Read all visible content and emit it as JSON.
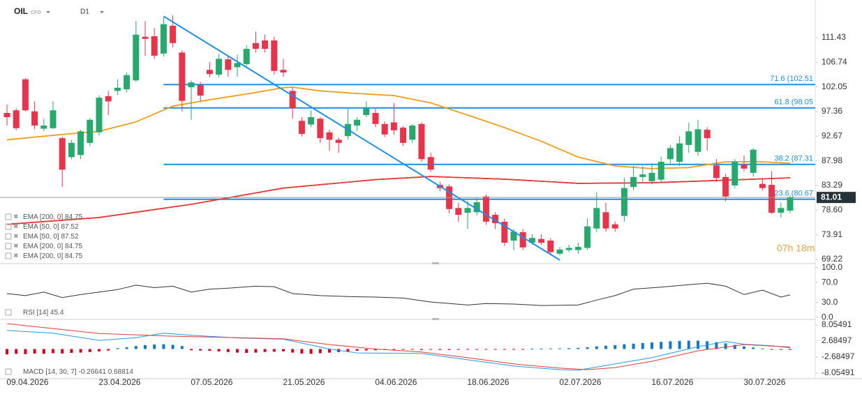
{
  "header": {
    "symbol": "OIL",
    "kind": "CFD",
    "timeframe": "D1"
  },
  "chart_data": [
    {
      "type": "candlestick",
      "categories": [
        null,
        null,
        "09.04.2026",
        null,
        null,
        null,
        null,
        null,
        null,
        null,
        null,
        null,
        "23.04.2026",
        null,
        null,
        null,
        null,
        null,
        null,
        null,
        null,
        null,
        "07.05.2026",
        null,
        null,
        null,
        null,
        null,
        null,
        null,
        null,
        null,
        "21.05.2026",
        null,
        null,
        null,
        null,
        null,
        null,
        null,
        null,
        null,
        "04.06.2026",
        null,
        null,
        null,
        null,
        null,
        null,
        null,
        null,
        null,
        "18.06.2026",
        null,
        null,
        null,
        null,
        null,
        null,
        null,
        null,
        null,
        "02.07.2026",
        null,
        null,
        null,
        null,
        null,
        null,
        null,
        null,
        null,
        "16.07.2026",
        null,
        null,
        null,
        null,
        null,
        null,
        null,
        null,
        null,
        "30.07.2026",
        null,
        null,
        null
      ],
      "open": [
        97.1,
        97.6,
        103.5,
        97.4,
        94.1,
        94.2,
        92.3,
        88.7,
        89.1,
        91.4,
        93.4,
        100.3,
        101.3,
        101.6,
        103.3,
        111.6,
        111.7,
        108.4,
        113.7,
        108.6,
        102.0,
        102.4,
        105.3,
        104.4,
        107.3,
        105.8,
        106.4,
        110.4,
        110.9,
        110.9,
        105.3,
        101.3,
        95.6,
        94.9,
        96.0,
        93.4,
        92.0,
        92.7,
        94.7,
        96.7,
        97.1,
        95.0,
        95.3,
        94.3,
        92.0,
        95.0,
        88.7,
        83.4,
        83.1,
        79.0,
        78.1,
        78.2,
        81.2,
        77.7,
        76.4,
        72.8,
        74.4,
        72.4,
        73.1,
        72.8,
        70.3,
        71.0,
        71.0,
        71.4,
        75.1,
        78.2,
        75.9,
        77.5,
        83.0,
        84.9,
        84.1,
        84.4,
        88.3,
        87.8,
        91.0,
        89.7,
        93.9,
        87.1,
        84.9,
        83.3,
        87.3,
        85.7,
        83.6,
        83.4,
        78.1,
        78.5
      ],
      "high": [
        98.7,
        98.0,
        103.7,
        99.3,
        96.0,
        99.3,
        92.6,
        92.0,
        93.9,
        96.1,
        100.5,
        101.3,
        103.5,
        104.8,
        114.6,
        114.6,
        113.3,
        115.3,
        115.7,
        109.0,
        103.3,
        103.0,
        106.8,
        108.3,
        108.0,
        108.2,
        110.0,
        112.6,
        112.0,
        111.6,
        107.4,
        101.9,
        96.3,
        97.6,
        96.3,
        93.9,
        92.4,
        97.9,
        96.3,
        99.3,
        97.9,
        95.5,
        99.0,
        94.6,
        95.0,
        95.3,
        89.5,
        84.0,
        83.5,
        80.0,
        80.3,
        81.0,
        81.6,
        78.2,
        77.0,
        75.0,
        75.0,
        74.0,
        74.0,
        73.3,
        71.6,
        72.0,
        72.4,
        77.0,
        82.0,
        80.0,
        76.4,
        84.8,
        87.0,
        87.0,
        87.5,
        88.8,
        91.0,
        92.7,
        95.3,
        95.8,
        94.4,
        88.3,
        85.5,
        88.3,
        89.0,
        90.4,
        84.5,
        86.0,
        80.0,
        81.4
      ],
      "low": [
        94.7,
        93.8,
        97.4,
        94.0,
        93.6,
        94.0,
        83.0,
        88.3,
        88.3,
        90.8,
        92.8,
        96.7,
        100.5,
        101.0,
        103.0,
        108.0,
        107.4,
        107.8,
        109.6,
        97.4,
        95.8,
        99.3,
        103.9,
        103.9,
        104.0,
        104.0,
        105.8,
        108.6,
        108.6,
        104.4,
        104.0,
        96.0,
        92.6,
        94.4,
        91.4,
        89.9,
        89.5,
        92.0,
        93.7,
        96.3,
        94.4,
        92.5,
        93.0,
        90.8,
        91.4,
        87.8,
        85.9,
        82.2,
        78.0,
        76.4,
        75.0,
        77.6,
        75.8,
        75.0,
        71.8,
        71.0,
        71.0,
        72.0,
        72.0,
        70.0,
        70.0,
        70.6,
        70.3,
        71.0,
        74.4,
        74.5,
        74.5,
        76.4,
        82.4,
        84.0,
        83.5,
        84.0,
        87.5,
        87.0,
        89.5,
        89.0,
        89.9,
        84.0,
        80.3,
        82.8,
        86.0,
        85.0,
        82.4,
        77.9,
        77.2,
        78.1
      ],
      "close": [
        96.3,
        94.2,
        97.6,
        94.7,
        94.7,
        97.6,
        86.3,
        91.4,
        93.6,
        95.8,
        100.0,
        99.3,
        101.9,
        104.3,
        112.0,
        111.2,
        108.0,
        114.0,
        110.4,
        99.4,
        102.9,
        100.4,
        104.5,
        107.4,
        105.3,
        106.6,
        109.3,
        109.3,
        109.3,
        105.1,
        104.8,
        98.0,
        93.1,
        96.3,
        92.3,
        92.0,
        91.4,
        95.0,
        95.8,
        98.0,
        95.0,
        93.0,
        93.8,
        91.4,
        94.7,
        88.3,
        86.3,
        82.8,
        78.8,
        77.7,
        79.0,
        80.1,
        76.4,
        76.1,
        72.4,
        74.5,
        71.5,
        73.3,
        72.4,
        70.6,
        71.1,
        71.4,
        71.6,
        75.5,
        79.0,
        75.1,
        75.1,
        82.8,
        84.9,
        85.4,
        85.7,
        87.8,
        90.4,
        91.3,
        93.6,
        94.0,
        92.3,
        84.7,
        81.2,
        87.8,
        86.5,
        90.1,
        82.8,
        78.1,
        79.0,
        81.01
      ],
      "up_color": "#26a96c",
      "down_color": "#e8334a",
      "ylim": [
        68.42,
        118.6
      ],
      "yticks": [
        111.43,
        106.74,
        102.05,
        97.36,
        92.67,
        87.98,
        83.29,
        {
          "value": 78.6,
          "label": "78.60"
        },
        73.91,
        69.22
      ],
      "series": [
        {
          "name": "EMA [200, 0]",
          "color": "#e53935",
          "x": [
            0,
            10,
            20,
            30,
            40,
            46,
            54,
            62,
            70,
            78,
            85
          ],
          "values": [
            75.9,
            77.2,
            79.7,
            82.8,
            84.4,
            85.0,
            84.5,
            83.7,
            83.8,
            84.3,
            84.75
          ]
        },
        {
          "name": "EMA [50, 0]",
          "color": "#f39c12",
          "x": [
            0,
            6,
            10,
            14,
            18,
            22,
            26,
            30,
            31,
            34,
            38,
            42,
            46,
            50,
            54,
            58,
            62,
            66,
            70,
            74,
            78,
            82,
            85
          ],
          "values": [
            92.0,
            93.0,
            93.6,
            95.4,
            98.4,
            99.6,
            100.7,
            101.9,
            102.0,
            101.3,
            100.8,
            100.4,
            99.0,
            96.7,
            94.3,
            91.7,
            88.7,
            87.0,
            86.5,
            86.7,
            87.8,
            87.8,
            87.52
          ]
        },
        {
          "name": "EMA [50, 0]",
          "color": "#f39c12",
          "x": [
            0,
            6,
            10,
            14,
            18,
            22,
            26,
            30,
            31,
            34,
            38,
            42,
            46,
            50,
            54,
            58,
            62,
            66,
            70,
            74,
            78,
            82,
            85
          ],
          "values": [
            92.0,
            93.0,
            93.6,
            95.4,
            98.4,
            99.6,
            100.7,
            101.9,
            102.0,
            101.3,
            100.8,
            100.4,
            99.0,
            96.7,
            94.3,
            91.7,
            88.7,
            87.0,
            86.5,
            86.7,
            87.8,
            87.8,
            87.52
          ]
        },
        {
          "name": "EMA [200, 0]",
          "color": "#e53935",
          "x": [
            0,
            10,
            20,
            30,
            40,
            46,
            54,
            62,
            70,
            78,
            85
          ],
          "values": [
            75.9,
            77.2,
            79.7,
            82.8,
            84.4,
            85.0,
            84.5,
            83.7,
            83.8,
            84.3,
            84.75
          ]
        },
        {
          "name": "EMA [200, 0]",
          "color": "#e53935",
          "x": [
            0,
            10,
            20,
            30,
            40,
            46,
            54,
            62,
            70,
            78,
            85
          ],
          "values": [
            75.9,
            77.2,
            79.7,
            82.8,
            84.4,
            85.0,
            84.5,
            83.7,
            83.8,
            84.3,
            84.75
          ]
        }
      ],
      "trendline": {
        "color": "#1e8fe8",
        "x": [
          17,
          60
        ],
        "values": [
          115.5,
          69.1
        ]
      },
      "levels": [
        {
          "value": 102.51,
          "label": "71.6 (102.51"
        },
        {
          "value": 98.05,
          "label": "61.8 (98.05"
        },
        {
          "value": 87.31,
          "label": "38.2 (87.31"
        },
        {
          "value": 80.67,
          "label": "23.6 (80.67"
        }
      ],
      "level_color": "#1a8fe3",
      "last_price": 81.01,
      "timer": "07h 18m"
    },
    {
      "type": "line",
      "name": "RSI [14]",
      "color": "#333333",
      "x": [
        0,
        2,
        4,
        6,
        8,
        10,
        12,
        14,
        16,
        18,
        20,
        22,
        24,
        27,
        29,
        31,
        34,
        37,
        40,
        43,
        46,
        50,
        52,
        55,
        58,
        62,
        64,
        66,
        68,
        71,
        74,
        76,
        78,
        80,
        82,
        84,
        85
      ],
      "values": [
        48,
        44,
        51,
        40,
        46,
        51,
        56,
        65,
        60,
        63,
        51,
        57,
        59,
        63,
        62,
        48,
        44,
        42,
        41,
        39,
        31,
        25,
        28,
        27,
        24,
        25,
        35,
        44,
        57,
        61,
        66,
        69,
        63,
        46,
        55,
        41,
        45.4
      ],
      "ylim": [
        -4,
        108.5
      ],
      "yticks": [
        {
          "value": 100,
          "label": "100.0"
        },
        {
          "value": 70,
          "label": "70.0"
        },
        {
          "value": 30,
          "label": "30.0"
        },
        {
          "value": 0,
          "label": "0.0"
        }
      ]
    },
    {
      "type": "combo",
      "name": "MACD [14, 30, 7]",
      "histogram": {
        "up_color": "#1479c4",
        "down_color": "#d0021b",
        "values": [
          -1.8,
          -1.6,
          -1.7,
          -1.5,
          -1.6,
          -1.4,
          -1.5,
          -1.3,
          -1.2,
          -1.0,
          -0.8,
          -0.5,
          0.3,
          0.6,
          1.0,
          1.3,
          1.5,
          1.6,
          1.4,
          1.0,
          -0.4,
          -0.5,
          -0.6,
          -0.8,
          -1.0,
          -1.2,
          -1.3,
          -1.2,
          -1.0,
          -0.9,
          -0.8,
          -1.2,
          -1.5,
          -1.6,
          -1.4,
          -1.2,
          -1.0,
          -0.8,
          -0.6,
          -0.5,
          -0.4,
          -0.3,
          -0.2,
          -0.2,
          -0.2,
          -0.3,
          -0.2,
          -0.3,
          -0.3,
          -0.2,
          -0.2,
          -0.1,
          -0.2,
          -0.2,
          -0.1,
          -0.1,
          -0.1,
          0.1,
          0.1,
          0.2,
          0.2,
          0.3,
          0.4,
          0.6,
          0.9,
          1.1,
          1.3,
          1.6,
          1.8,
          2.0,
          2.2,
          2.4,
          2.6,
          2.7,
          2.8,
          2.8,
          2.6,
          2.3,
          1.9,
          1.4,
          0.9,
          0.5,
          0.2,
          -0.1,
          -0.2,
          -0.26641
        ]
      },
      "series": [
        {
          "color": "#2196f3",
          "x": [
            0,
            5,
            10,
            14,
            17,
            20,
            25,
            30,
            35,
            38,
            45,
            50,
            55,
            60,
            62,
            65,
            70,
            75,
            78,
            80,
            83,
            85
          ],
          "values": [
            6.2,
            5.3,
            2.9,
            3.8,
            5.3,
            4.6,
            3.7,
            3.3,
            0,
            -1.3,
            -1.5,
            -3.6,
            -5.7,
            -6.9,
            -7.1,
            -5.5,
            -2.9,
            0.8,
            2.5,
            1.6,
            1.1,
            0.42
          ]
        },
        {
          "color": "#e53935",
          "x": [
            0,
            10,
            18,
            25,
            30,
            35,
            40,
            45,
            50,
            55,
            60,
            63,
            66,
            70,
            75,
            80,
            85
          ],
          "values": [
            8.5,
            5.2,
            4.3,
            3.8,
            3.4,
            1.5,
            0,
            -1.0,
            -2.9,
            -5.0,
            -6.4,
            -6.9,
            -6.2,
            -4.1,
            -0.6,
            1.5,
            0.68814
          ]
        }
      ],
      "ylim": [
        -9.92,
        9.92
      ],
      "yticks": [
        8.05491,
        2.68497,
        -2.68497,
        -8.05491
      ]
    }
  ]
}
